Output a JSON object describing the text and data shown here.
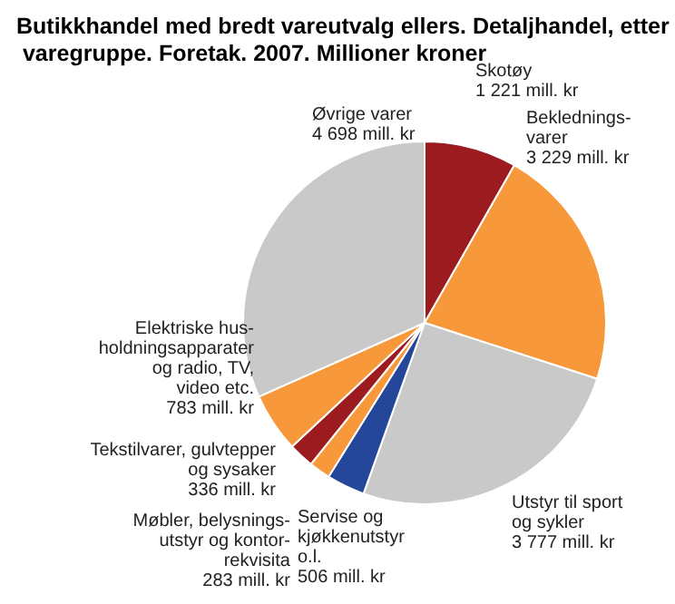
{
  "chart_data": {
    "type": "pie",
    "title": "Butikkhandel med bredt vareutvalg ellers. Detaljhandel, etter varegruppe. Foretak. 2007. Millioner kroner",
    "categories": [
      "Skotøy",
      "Beklednings-\nvarer",
      "Utstyr til sport\nog sykler",
      "Servise og\nkjøkkenutstyr\no.l.",
      "Møbler, belysnings-\nutstyr og kontor-\nrekvisita",
      "Tekstilvarer, gulvtepper\nog sysaker",
      "Elektriske hus-\nholdningsapparater\nog radio, TV,\nvideo etc.",
      "Øvrige varer"
    ],
    "values": [
      1221,
      3229,
      3777,
      506,
      283,
      336,
      783,
      4698
    ],
    "value_labels": [
      "1 221 mill. kr",
      "3 229 mill. kr",
      "3 777 mill. kr",
      "506 mill. kr",
      "283 mill. kr",
      "336 mill. kr",
      "783 mill. kr",
      "4 698 mill. kr"
    ],
    "colors": [
      "#9b1b1f",
      "#f7993b",
      "#c9c9c9",
      "#24479a",
      "#f7993b",
      "#9b1b1f",
      "#f7993b",
      "#c9c9c9"
    ]
  }
}
